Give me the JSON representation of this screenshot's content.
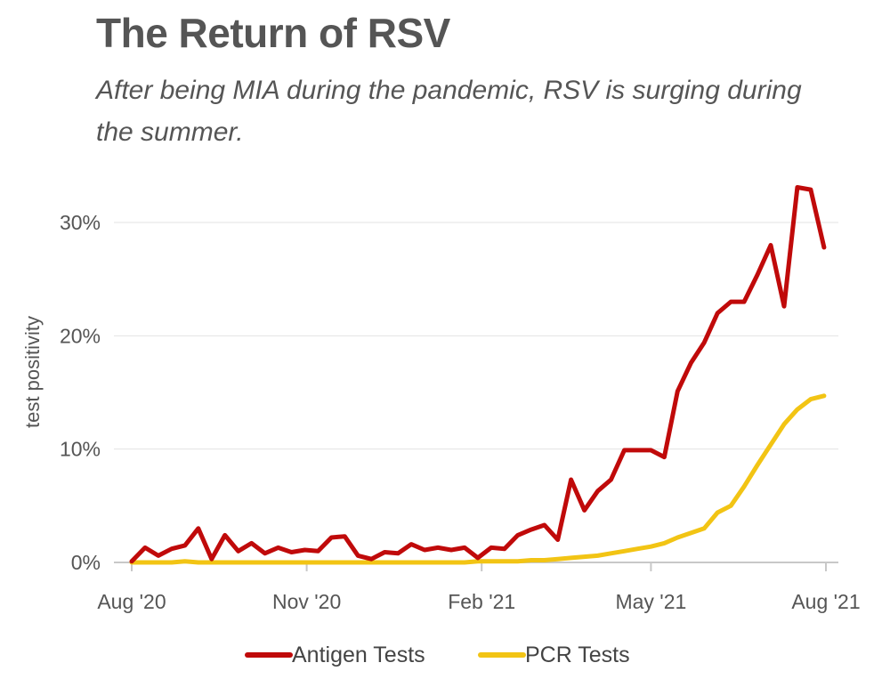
{
  "chart_data": {
    "type": "line",
    "title": "The Return of RSV",
    "subtitle": "After being MIA during the pandemic, RSV is surging during the summer.",
    "ylabel": "test positivity",
    "xlabel": "",
    "ylim": [
      0,
      30
    ],
    "yticks": [
      0,
      10,
      20,
      30
    ],
    "ytick_labels": [
      "0%",
      "10%",
      "20%",
      "30%"
    ],
    "xticks": [
      "2020-08-01",
      "2020-11-01",
      "2021-02-01",
      "2021-05-01",
      "2021-08-01"
    ],
    "xtick_labels": [
      "Aug '20",
      "Nov '20",
      "Feb '21",
      "May '21",
      "Aug '21"
    ],
    "x": [
      "2020-08-01",
      "2020-08-08",
      "2020-08-15",
      "2020-08-22",
      "2020-08-29",
      "2020-09-05",
      "2020-09-12",
      "2020-09-19",
      "2020-09-26",
      "2020-10-03",
      "2020-10-10",
      "2020-10-17",
      "2020-10-24",
      "2020-10-31",
      "2020-11-07",
      "2020-11-14",
      "2020-11-21",
      "2020-11-28",
      "2020-12-05",
      "2020-12-12",
      "2020-12-19",
      "2020-12-26",
      "2021-01-02",
      "2021-01-09",
      "2021-01-16",
      "2021-01-23",
      "2021-01-30",
      "2021-02-06",
      "2021-02-13",
      "2021-02-20",
      "2021-02-27",
      "2021-03-06",
      "2021-03-13",
      "2021-03-20",
      "2021-03-27",
      "2021-04-03",
      "2021-04-10",
      "2021-04-17",
      "2021-04-24",
      "2021-05-01",
      "2021-05-08",
      "2021-05-15",
      "2021-05-22",
      "2021-05-29",
      "2021-06-05",
      "2021-06-12",
      "2021-06-19",
      "2021-06-26",
      "2021-07-03",
      "2021-07-10",
      "2021-07-17",
      "2021-07-24",
      "2021-07-31"
    ],
    "series": [
      {
        "name": "Antigen Tests",
        "color": "#c00a0a",
        "values": [
          0.1,
          1.3,
          0.6,
          1.2,
          1.5,
          3.0,
          0.3,
          2.4,
          1.0,
          1.7,
          0.8,
          1.3,
          0.9,
          1.1,
          1.0,
          2.2,
          2.3,
          0.6,
          0.3,
          0.9,
          0.8,
          1.6,
          1.1,
          1.3,
          1.1,
          1.3,
          0.4,
          1.3,
          1.2,
          2.4,
          2.9,
          3.3,
          2.0,
          7.3,
          4.6,
          6.3,
          7.3,
          9.9,
          9.9,
          9.9,
          9.3,
          15.1,
          17.6,
          19.4,
          22.0,
          23.0,
          23.0,
          25.4,
          28.0,
          22.6,
          33.1,
          32.9,
          27.8
        ]
      },
      {
        "name": "PCR Tests",
        "color": "#f2c414",
        "values": [
          0.0,
          0.0,
          0.0,
          0.0,
          0.1,
          0.0,
          0.0,
          0.0,
          0.0,
          0.0,
          0.0,
          0.0,
          0.0,
          0.0,
          0.0,
          0.0,
          0.0,
          0.0,
          0.0,
          0.0,
          0.0,
          0.0,
          0.0,
          0.0,
          0.0,
          0.0,
          0.1,
          0.1,
          0.1,
          0.1,
          0.2,
          0.2,
          0.3,
          0.4,
          0.5,
          0.6,
          0.8,
          1.0,
          1.2,
          1.4,
          1.7,
          2.2,
          2.6,
          3.0,
          4.4,
          5.0,
          6.7,
          8.6,
          10.4,
          12.2,
          13.5,
          14.4,
          14.7
        ]
      }
    ],
    "legend": {
      "position": "bottom"
    },
    "grid": {
      "y": true,
      "x": false
    }
  }
}
